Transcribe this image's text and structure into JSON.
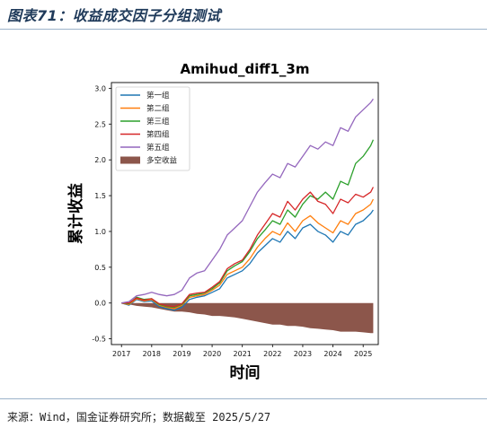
{
  "header": {
    "caption": "图表71：收益成交因子分组测试"
  },
  "footer": {
    "source": "来源：Wind，国金证券研究所；数据截至 2025/5/27"
  },
  "chart_data": {
    "type": "line",
    "title": "Amihud_diff1_3m",
    "xlabel": "时间",
    "ylabel": "累计收益",
    "x_ticks": [
      "2017",
      "2018",
      "2019",
      "2020",
      "2021",
      "2022",
      "2023",
      "2024",
      "2025"
    ],
    "y_ticks": [
      -0.5,
      0.0,
      0.5,
      1.0,
      1.5,
      2.0,
      2.5,
      3.0
    ],
    "xlim": [
      "2016-09",
      "2025-07"
    ],
    "ylim": [
      -0.58,
      3.08
    ],
    "legend_position": "top-left",
    "grid": false,
    "x": [
      "2017-01",
      "2017-04",
      "2017-07",
      "2017-10",
      "2018-01",
      "2018-04",
      "2018-07",
      "2018-10",
      "2019-01",
      "2019-04",
      "2019-07",
      "2019-10",
      "2020-01",
      "2020-04",
      "2020-07",
      "2020-10",
      "2021-01",
      "2021-04",
      "2021-07",
      "2021-10",
      "2022-01",
      "2022-04",
      "2022-07",
      "2022-10",
      "2023-01",
      "2023-04",
      "2023-07",
      "2023-10",
      "2024-01",
      "2024-04",
      "2024-07",
      "2024-10",
      "2025-01",
      "2025-04",
      "2025-05"
    ],
    "series": [
      {
        "name": "第一组",
        "color": "#1f77b4",
        "values": [
          0.0,
          -0.03,
          0.05,
          0.02,
          0.03,
          -0.05,
          -0.08,
          -0.1,
          -0.06,
          0.05,
          0.08,
          0.1,
          0.15,
          0.2,
          0.35,
          0.4,
          0.45,
          0.55,
          0.7,
          0.8,
          0.9,
          0.85,
          1.0,
          0.9,
          1.05,
          1.1,
          1.0,
          0.95,
          0.85,
          1.0,
          0.95,
          1.1,
          1.15,
          1.25,
          1.3
        ]
      },
      {
        "name": "第二组",
        "color": "#ff7f0e",
        "values": [
          0.0,
          -0.02,
          0.06,
          0.03,
          0.05,
          -0.03,
          -0.06,
          -0.08,
          -0.03,
          0.08,
          0.1,
          0.12,
          0.18,
          0.25,
          0.4,
          0.45,
          0.5,
          0.62,
          0.78,
          0.9,
          1.0,
          0.95,
          1.12,
          1.0,
          1.15,
          1.22,
          1.12,
          1.05,
          0.98,
          1.15,
          1.1,
          1.25,
          1.3,
          1.38,
          1.45
        ]
      },
      {
        "name": "第三组",
        "color": "#2ca02c",
        "values": [
          0.0,
          -0.01,
          0.08,
          0.05,
          0.06,
          -0.02,
          -0.05,
          -0.06,
          -0.02,
          0.1,
          0.12,
          0.14,
          0.2,
          0.28,
          0.45,
          0.52,
          0.58,
          0.72,
          0.9,
          1.02,
          1.15,
          1.1,
          1.3,
          1.2,
          1.38,
          1.5,
          1.45,
          1.55,
          1.45,
          1.7,
          1.65,
          1.95,
          2.05,
          2.2,
          2.28
        ]
      },
      {
        "name": "第四组",
        "color": "#d62728",
        "values": [
          0.0,
          0.0,
          0.07,
          0.04,
          0.06,
          -0.01,
          -0.04,
          -0.05,
          -0.01,
          0.12,
          0.14,
          0.15,
          0.22,
          0.3,
          0.48,
          0.55,
          0.6,
          0.75,
          0.95,
          1.1,
          1.25,
          1.2,
          1.42,
          1.3,
          1.45,
          1.55,
          1.42,
          1.38,
          1.25,
          1.45,
          1.4,
          1.52,
          1.48,
          1.55,
          1.62
        ]
      },
      {
        "name": "第五组",
        "color": "#9467bd",
        "values": [
          0.0,
          0.02,
          0.1,
          0.12,
          0.15,
          0.12,
          0.1,
          0.12,
          0.18,
          0.35,
          0.42,
          0.45,
          0.6,
          0.75,
          0.95,
          1.05,
          1.15,
          1.35,
          1.55,
          1.68,
          1.8,
          1.75,
          1.95,
          1.9,
          2.05,
          2.2,
          2.15,
          2.25,
          2.2,
          2.45,
          2.4,
          2.6,
          2.7,
          2.8,
          2.85
        ]
      },
      {
        "name": "多空收益",
        "color": "#8c564b",
        "kind": "area",
        "values": [
          0.0,
          -0.02,
          -0.04,
          -0.05,
          -0.06,
          -0.08,
          -0.1,
          -0.12,
          -0.12,
          -0.13,
          -0.15,
          -0.16,
          -0.18,
          -0.18,
          -0.19,
          -0.2,
          -0.22,
          -0.24,
          -0.26,
          -0.28,
          -0.3,
          -0.3,
          -0.32,
          -0.32,
          -0.33,
          -0.35,
          -0.36,
          -0.37,
          -0.38,
          -0.4,
          -0.4,
          -0.4,
          -0.41,
          -0.42,
          -0.42
        ]
      }
    ]
  }
}
